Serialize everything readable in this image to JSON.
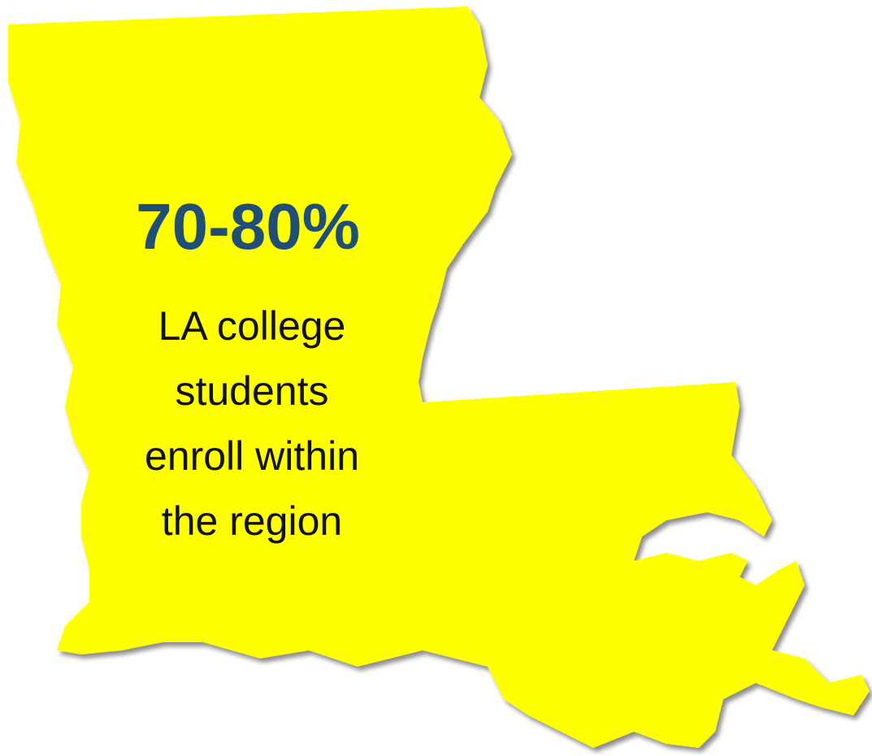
{
  "headline": "70-80%",
  "caption": [
    "LA college",
    "students",
    "enroll within",
    "the region"
  ]
}
